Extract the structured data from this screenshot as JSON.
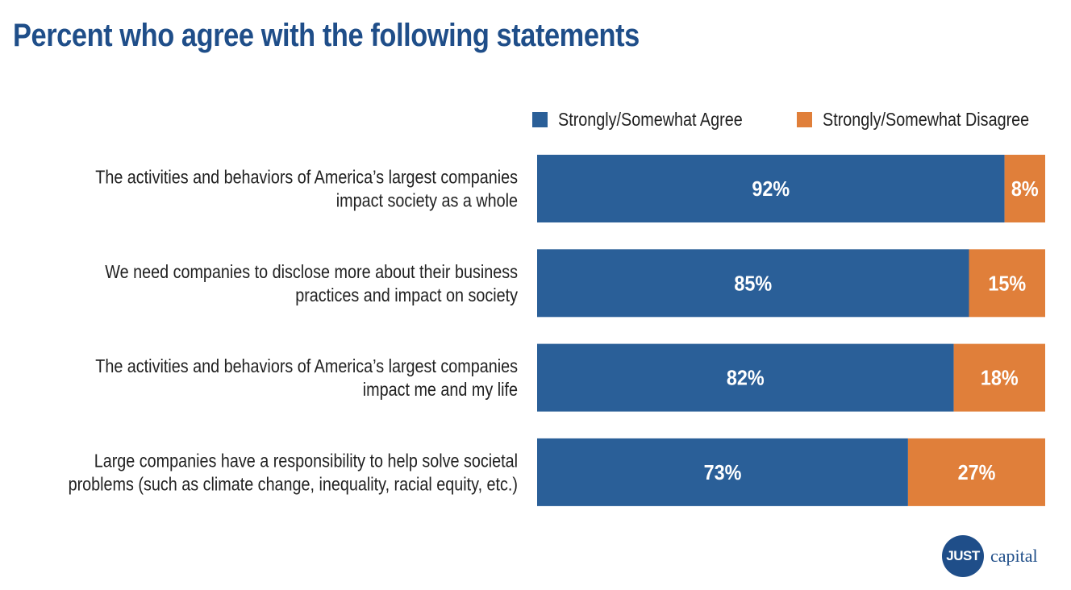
{
  "chart_data": {
    "type": "bar",
    "orientation": "horizontal",
    "stacked": true,
    "title": "Percent who agree with the following statements",
    "categories": [
      [
        "The activities and behaviors of America’s largest companies",
        "impact society as a whole"
      ],
      [
        "We need companies to disclose more about their business",
        "practices and impact on society"
      ],
      [
        "The activities and behaviors of America’s largest companies",
        "impact me and my life"
      ],
      [
        "Large companies have a responsibility to help solve societal",
        "problems (such as climate change, inequality, racial equity, etc.)"
      ]
    ],
    "series": [
      {
        "name": "Strongly/Somewhat Agree",
        "color": "#2a5f98",
        "values": [
          92,
          85,
          82,
          73
        ],
        "labels": [
          "92%",
          "85%",
          "82%",
          "73%"
        ]
      },
      {
        "name": "Strongly/Somewhat Disagree",
        "color": "#e07f3a",
        "values": [
          8,
          15,
          18,
          27
        ],
        "labels": [
          "8%",
          "15%",
          "18%",
          "27%"
        ]
      }
    ],
    "xlim": [
      0,
      100
    ],
    "legend_position": "top-right"
  },
  "logo": {
    "badge": "JUST",
    "word": "capital"
  }
}
